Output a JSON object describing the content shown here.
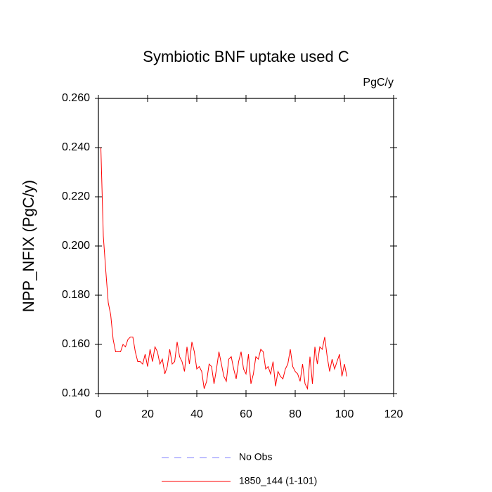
{
  "chart_data": {
    "type": "line",
    "title": "Symbiotic BNF uptake used C",
    "units_label": "PgC/y",
    "y_label": "NPP_NFIX  (PgC/y)",
    "x": [
      1,
      2,
      3,
      4,
      5,
      6,
      7,
      8,
      9,
      10,
      11,
      12,
      13,
      14,
      15,
      16,
      17,
      18,
      19,
      20,
      21,
      22,
      23,
      24,
      25,
      26,
      27,
      28,
      29,
      30,
      31,
      32,
      33,
      34,
      35,
      36,
      37,
      38,
      39,
      40,
      41,
      42,
      43,
      44,
      45,
      46,
      47,
      48,
      49,
      50,
      51,
      52,
      53,
      54,
      55,
      56,
      57,
      58,
      59,
      60,
      61,
      62,
      63,
      64,
      65,
      66,
      67,
      68,
      69,
      70,
      71,
      72,
      73,
      74,
      75,
      76,
      77,
      78,
      79,
      80,
      81,
      82,
      83,
      84,
      85,
      86,
      87,
      88,
      89,
      90,
      91,
      92,
      93,
      94,
      95,
      96,
      97,
      98,
      99,
      100,
      101
    ],
    "series": [
      {
        "name": "1850_144 (1-101)",
        "color": "#ff0000",
        "values": [
          0.24,
          0.204,
          0.19,
          0.177,
          0.172,
          0.162,
          0.157,
          0.157,
          0.157,
          0.16,
          0.159,
          0.162,
          0.163,
          0.163,
          0.157,
          0.153,
          0.153,
          0.152,
          0.156,
          0.151,
          0.158,
          0.153,
          0.159,
          0.157,
          0.152,
          0.154,
          0.148,
          0.151,
          0.158,
          0.152,
          0.153,
          0.161,
          0.155,
          0.153,
          0.149,
          0.159,
          0.152,
          0.161,
          0.157,
          0.15,
          0.151,
          0.149,
          0.142,
          0.145,
          0.152,
          0.151,
          0.144,
          0.15,
          0.157,
          0.152,
          0.147,
          0.145,
          0.154,
          0.155,
          0.15,
          0.146,
          0.153,
          0.157,
          0.15,
          0.148,
          0.156,
          0.144,
          0.148,
          0.155,
          0.154,
          0.158,
          0.157,
          0.15,
          0.151,
          0.148,
          0.153,
          0.143,
          0.149,
          0.147,
          0.146,
          0.15,
          0.152,
          0.158,
          0.151,
          0.149,
          0.148,
          0.145,
          0.152,
          0.144,
          0.142,
          0.155,
          0.144,
          0.159,
          0.152,
          0.159,
          0.158,
          0.163,
          0.155,
          0.149,
          0.154,
          0.15,
          0.153,
          0.156,
          0.147,
          0.152,
          0.147
        ]
      }
    ],
    "legend_extra": [
      {
        "name": "No Obs",
        "color": "#8080ff",
        "dashed": true
      }
    ],
    "xlim": [
      0,
      120
    ],
    "xticks": [
      0,
      20,
      40,
      60,
      80,
      100,
      120
    ],
    "ylim": [
      0.14,
      0.26
    ],
    "yticks": [
      {
        "value": 0.14,
        "label": "0.140"
      },
      {
        "value": 0.16,
        "label": "0.160"
      },
      {
        "value": 0.18,
        "label": "0.180"
      },
      {
        "value": 0.2,
        "label": "0.200"
      },
      {
        "value": 0.22,
        "label": "0.220"
      },
      {
        "value": 0.24,
        "label": "0.240"
      },
      {
        "value": 0.26,
        "label": "0.260"
      }
    ]
  }
}
